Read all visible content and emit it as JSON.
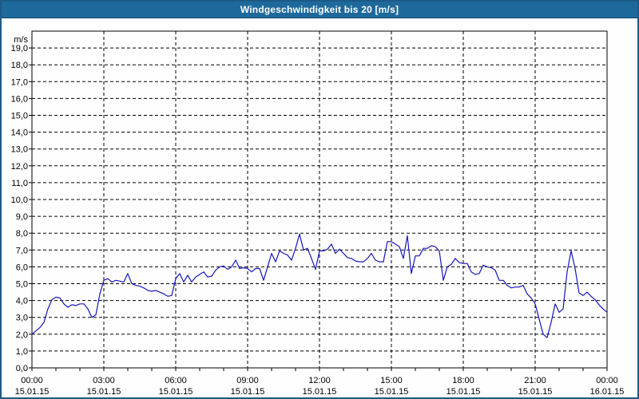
{
  "window": {
    "title": "Windgeschwindigkeit bis 20 [m/s]"
  },
  "colors": {
    "title_bar_bg": "#1e699c",
    "title_text": "#ffffff",
    "outer_border": "#1d5a88",
    "plot_bg": "#fdfefd",
    "grid": "#000000",
    "axis_text": "#000000",
    "line": "#1717b8"
  },
  "chart_data": {
    "type": "line",
    "title": "Windgeschwindigkeit bis 20 [m/s]",
    "xlabel": "",
    "ylabel": "m/s",
    "unit_label": "m/s",
    "grid": "dashed",
    "legend": "none",
    "ylim": [
      0,
      20
    ],
    "x_hours_range": [
      0,
      24
    ],
    "y_axis": {
      "min": 0,
      "max": 20,
      "gridline_step": 1,
      "tick_labels": [
        "19,0",
        "18,0",
        "17,0",
        "16,0",
        "15,0",
        "14,0",
        "13,0",
        "12,0",
        "11,0",
        "10,0",
        "9,0",
        "8,0",
        "7,0",
        "6,0",
        "5,0",
        "4,0",
        "3,0",
        "2,0",
        "1,0",
        "0,0"
      ]
    },
    "x_axis": {
      "minor_tick_every_hours": 1,
      "major_gridline_hours": [
        3,
        6,
        9,
        12,
        15,
        18,
        21
      ],
      "ticks": [
        {
          "hour": 0,
          "time": "00:00",
          "date": "15.01.15"
        },
        {
          "hour": 3,
          "time": "03:00",
          "date": "15.01.15"
        },
        {
          "hour": 6,
          "time": "06:00",
          "date": "15.01.15"
        },
        {
          "hour": 9,
          "time": "09:00",
          "date": "15.01.15"
        },
        {
          "hour": 12,
          "time": "12:00",
          "date": "15.01.15"
        },
        {
          "hour": 15,
          "time": "15:00",
          "date": "15.01.15"
        },
        {
          "hour": 18,
          "time": "18:00",
          "date": "15.01.15"
        },
        {
          "hour": 21,
          "time": "21:00",
          "date": "15.01.15"
        },
        {
          "hour": 24,
          "time": "00:00",
          "date": "16.01.15"
        }
      ]
    },
    "series": [
      {
        "name": "Windgeschwindigkeit",
        "color": "#1717b8",
        "start_hour": 0,
        "interval_minutes": 10,
        "values_ms": [
          2.0,
          2.2,
          2.4,
          2.7,
          3.5,
          4.05,
          4.2,
          4.15,
          3.8,
          3.6,
          3.75,
          3.7,
          3.8,
          3.8,
          3.5,
          3.0,
          3.15,
          4.4,
          5.2,
          5.3,
          5.1,
          5.2,
          5.15,
          5.1,
          5.6,
          5.0,
          4.9,
          4.85,
          4.75,
          4.6,
          4.55,
          4.6,
          4.5,
          4.4,
          4.25,
          4.3,
          5.3,
          5.6,
          5.1,
          5.5,
          5.1,
          5.4,
          5.55,
          5.7,
          5.4,
          5.45,
          5.8,
          6.0,
          6.05,
          5.85,
          6.0,
          6.4,
          5.9,
          5.95,
          5.9,
          5.7,
          5.9,
          5.9,
          5.2,
          6.0,
          6.8,
          6.3,
          6.95,
          6.8,
          6.7,
          6.4,
          7.1,
          7.95,
          7.0,
          7.1,
          6.5,
          5.85,
          6.95,
          6.95,
          7.05,
          7.35,
          6.8,
          7.05,
          6.8,
          6.55,
          6.5,
          6.35,
          6.3,
          6.3,
          6.5,
          6.8,
          6.4,
          6.3,
          6.3,
          7.5,
          7.5,
          7.35,
          7.2,
          6.5,
          7.85,
          5.6,
          6.65,
          6.65,
          7.1,
          7.1,
          7.25,
          7.2,
          6.95,
          5.2,
          6.0,
          6.15,
          6.5,
          6.25,
          6.2,
          6.2,
          5.7,
          5.55,
          5.6,
          6.1,
          6.0,
          5.95,
          5.8,
          5.2,
          5.2,
          4.9,
          4.75,
          4.8,
          4.8,
          4.9,
          4.4,
          4.15,
          3.8,
          2.9,
          2.0,
          1.8,
          2.7,
          3.8,
          3.3,
          3.5,
          5.7,
          6.95,
          5.9,
          4.45,
          4.3,
          4.5,
          4.25,
          4.05,
          3.75,
          3.5,
          3.3
        ]
      }
    ]
  }
}
